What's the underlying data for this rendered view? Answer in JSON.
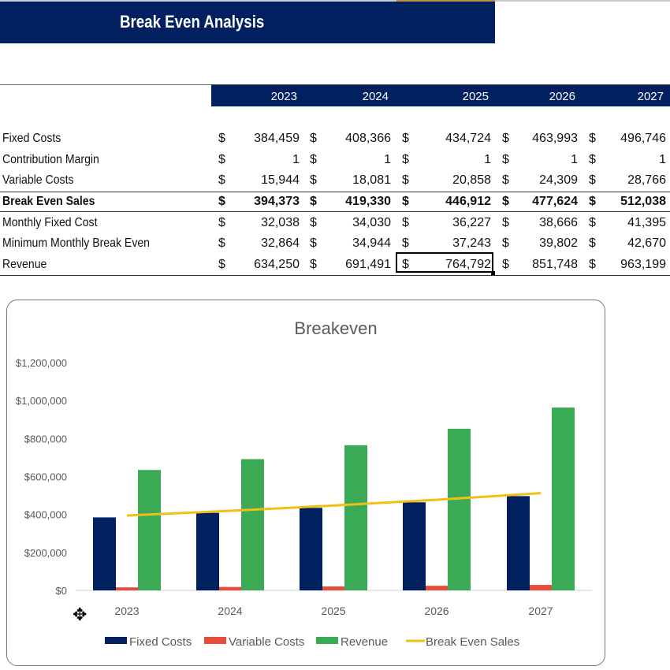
{
  "title": "Break Even Analysis",
  "table": {
    "years": [
      "2023",
      "2024",
      "2025",
      "2026",
      "2027"
    ],
    "currency": "$",
    "rows": [
      {
        "label": "Fixed Costs",
        "values": [
          "384,459",
          "408,366",
          "434,724",
          "463,993",
          "496,746"
        ],
        "bold": false
      },
      {
        "label": "Contribution Margin",
        "values": [
          "1",
          "1",
          "1",
          "1",
          "1"
        ],
        "bold": false
      },
      {
        "label": "Variable Costs",
        "values": [
          "15,944",
          "18,081",
          "20,858",
          "24,309",
          "28,766"
        ],
        "bold": false
      },
      {
        "label": "Break Even Sales",
        "values": [
          "394,373",
          "419,330",
          "446,912",
          "477,624",
          "512,038"
        ],
        "bold": true
      },
      {
        "label": "Monthly Fixed Cost",
        "values": [
          "32,038",
          "34,030",
          "36,227",
          "38,666",
          "41,395"
        ],
        "bold": false
      },
      {
        "label": "Minimum Monthly Break Even",
        "values": [
          "32,864",
          "34,944",
          "37,243",
          "39,802",
          "42,670"
        ],
        "bold": false
      },
      {
        "label": "Revenue",
        "values": [
          "634,250",
          "691,491",
          "764,792",
          "851,748",
          "963,199"
        ],
        "bold": false
      }
    ],
    "selected_cell": "Revenue 2025"
  },
  "chart_data": {
    "type": "bar",
    "title": "Breakeven",
    "categories": [
      "2023",
      "2024",
      "2025",
      "2026",
      "2027"
    ],
    "ylim": [
      0,
      1200000
    ],
    "yticks": [
      "$0",
      "$200,000",
      "$400,000",
      "$600,000",
      "$800,000",
      "$1,000,000",
      "$1,200,000"
    ],
    "grid": false,
    "legend_position": "bottom",
    "series": [
      {
        "name": "Fixed Costs",
        "kind": "bar",
        "color": "#002060",
        "values": [
          384459,
          408366,
          434724,
          463993,
          496746
        ]
      },
      {
        "name": "Variable Costs",
        "kind": "bar",
        "color": "#e84c3d",
        "values": [
          15944,
          18081,
          20858,
          24309,
          28766
        ]
      },
      {
        "name": "Revenue",
        "kind": "bar",
        "color": "#3aaa55",
        "values": [
          634250,
          691491,
          764792,
          851748,
          963199
        ]
      },
      {
        "name": "Break Even Sales",
        "kind": "line",
        "color": "#f2bf16",
        "values": [
          394373,
          419330,
          446912,
          477624,
          512038
        ]
      }
    ]
  }
}
